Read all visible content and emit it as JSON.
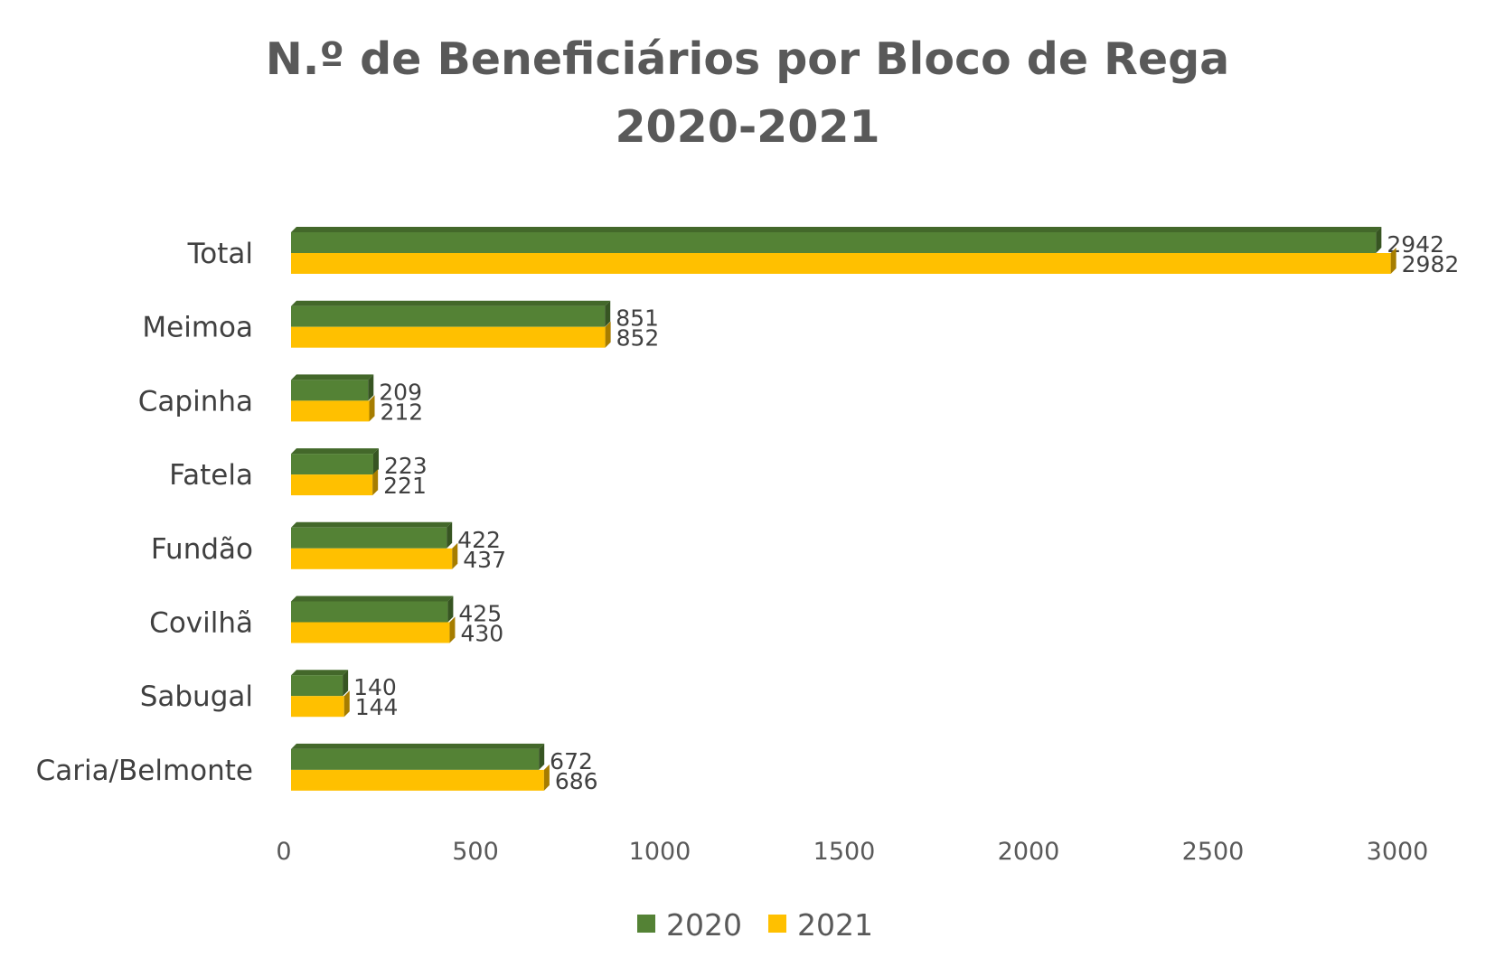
{
  "chart_data": {
    "type": "bar",
    "orientation": "horizontal",
    "title": [
      "N.º de Beneficiários por Bloco de Rega",
      "2020-2021"
    ],
    "categories": [
      "Total",
      "Meimoa",
      "Capinha",
      "Fatela",
      "Fundão",
      "Covilhã",
      "Sabugal",
      "Caria/Belmonte"
    ],
    "series": [
      {
        "name": "2020",
        "color": "#548235",
        "values": [
          2942,
          851,
          209,
          223,
          422,
          425,
          140,
          672
        ]
      },
      {
        "name": "2021",
        "color": "#FFC000",
        "values": [
          2982,
          852,
          212,
          221,
          437,
          430,
          144,
          686
        ]
      }
    ],
    "xlim": [
      0,
      3000
    ],
    "xticks": [
      "0",
      "500",
      "1000",
      "1500",
      "2000",
      "2500",
      "3000"
    ],
    "xlabel": "",
    "ylabel": "",
    "grid": false,
    "legend_position": "bottom"
  }
}
